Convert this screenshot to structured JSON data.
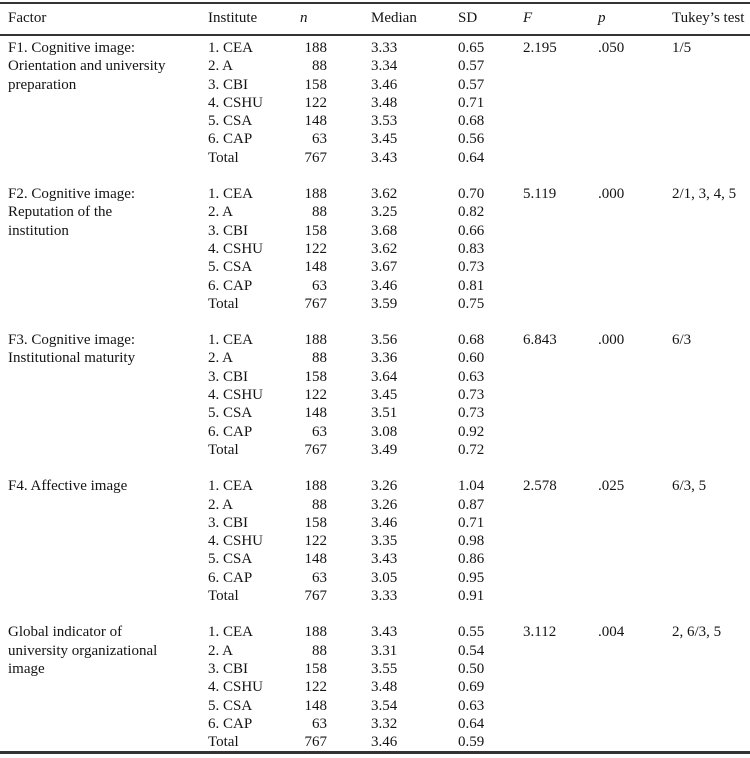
{
  "table": {
    "columns": [
      {
        "key": "factor",
        "label": "Factor"
      },
      {
        "key": "institute",
        "label": "Institute"
      },
      {
        "key": "n",
        "label": "n"
      },
      {
        "key": "median",
        "label": "Median"
      },
      {
        "key": "sd",
        "label": "SD"
      },
      {
        "key": "f",
        "label": "F"
      },
      {
        "key": "p",
        "label": "p"
      },
      {
        "key": "tukey",
        "label": "Tukey’s test"
      }
    ],
    "sections": [
      {
        "factor_lines": [
          "F1. Cognitive image:",
          "Orientation and university",
          "preparation"
        ],
        "rows": [
          {
            "institute": "1. CEA",
            "n": "188",
            "median": "3.33",
            "sd": "0.65",
            "f": "2.195",
            "p": ".050",
            "tukey": "1/5"
          },
          {
            "institute": "2. A",
            "n": "88",
            "median": "3.34",
            "sd": "0.57"
          },
          {
            "institute": "3. CBI",
            "n": "158",
            "median": "3.46",
            "sd": "0.57"
          },
          {
            "institute": "4. CSHU",
            "n": "122",
            "median": "3.48",
            "sd": "0.71"
          },
          {
            "institute": "5. CSA",
            "n": "148",
            "median": "3.53",
            "sd": "0.68"
          },
          {
            "institute": "6. CAP",
            "n": "63",
            "median": "3.45",
            "sd": "0.56"
          },
          {
            "institute": "Total",
            "n": "767",
            "median": "3.43",
            "sd": "0.64"
          }
        ]
      },
      {
        "factor_lines": [
          "F2. Cognitive image:",
          "Reputation of the",
          "institution"
        ],
        "rows": [
          {
            "institute": "1. CEA",
            "n": "188",
            "median": "3.62",
            "sd": "0.70",
            "f": "5.119",
            "p": ".000",
            "tukey": "2/1, 3, 4, 5"
          },
          {
            "institute": "2. A",
            "n": "88",
            "median": "3.25",
            "sd": "0.82"
          },
          {
            "institute": "3. CBI",
            "n": "158",
            "median": "3.68",
            "sd": "0.66"
          },
          {
            "institute": "4. CSHU",
            "n": "122",
            "median": "3.62",
            "sd": "0.83"
          },
          {
            "institute": "5. CSA",
            "n": "148",
            "median": "3.67",
            "sd": "0.73"
          },
          {
            "institute": "6. CAP",
            "n": "63",
            "median": "3.46",
            "sd": "0.81"
          },
          {
            "institute": "Total",
            "n": "767",
            "median": "3.59",
            "sd": "0.75"
          }
        ]
      },
      {
        "factor_lines": [
          "F3. Cognitive image:",
          "Institutional maturity"
        ],
        "rows": [
          {
            "institute": "1. CEA",
            "n": "188",
            "median": "3.56",
            "sd": "0.68",
            "f": "6.843",
            "p": ".000",
            "tukey": "6/3"
          },
          {
            "institute": "2. A",
            "n": "88",
            "median": "3.36",
            "sd": "0.60"
          },
          {
            "institute": "3. CBI",
            "n": "158",
            "median": "3.64",
            "sd": "0.63"
          },
          {
            "institute": "4. CSHU",
            "n": "122",
            "median": "3.45",
            "sd": "0.73"
          },
          {
            "institute": "5. CSA",
            "n": "148",
            "median": "3.51",
            "sd": "0.73"
          },
          {
            "institute": "6. CAP",
            "n": "63",
            "median": "3.08",
            "sd": "0.92"
          },
          {
            "institute": "Total",
            "n": "767",
            "median": "3.49",
            "sd": "0.72"
          }
        ]
      },
      {
        "factor_lines": [
          "F4. Affective image"
        ],
        "rows": [
          {
            "institute": "1. CEA",
            "n": "188",
            "median": "3.26",
            "sd": "1.04",
            "f": "2.578",
            "p": ".025",
            "tukey": "6/3, 5"
          },
          {
            "institute": "2. A",
            "n": "88",
            "median": "3.26",
            "sd": "0.87"
          },
          {
            "institute": "3. CBI",
            "n": "158",
            "median": "3.46",
            "sd": "0.71"
          },
          {
            "institute": "4. CSHU",
            "n": "122",
            "median": "3.35",
            "sd": "0.98"
          },
          {
            "institute": "5. CSA",
            "n": "148",
            "median": "3.43",
            "sd": "0.86"
          },
          {
            "institute": "6. CAP",
            "n": "63",
            "median": "3.05",
            "sd": "0.95"
          },
          {
            "institute": "Total",
            "n": "767",
            "median": "3.33",
            "sd": "0.91"
          }
        ]
      },
      {
        "factor_lines": [
          "Global indicator of",
          "university organizational",
          "image"
        ],
        "rows": [
          {
            "institute": "1. CEA",
            "n": "188",
            "median": "3.43",
            "sd": "0.55",
            "f": "3.112",
            "p": ".004",
            "tukey": "2, 6/3, 5"
          },
          {
            "institute": "2. A",
            "n": "88",
            "median": "3.31",
            "sd": "0.54"
          },
          {
            "institute": "3. CBI",
            "n": "158",
            "median": "3.55",
            "sd": "0.50"
          },
          {
            "institute": "4. CSHU",
            "n": "122",
            "median": "3.48",
            "sd": "0.69"
          },
          {
            "institute": "5. CSA",
            "n": "148",
            "median": "3.54",
            "sd": "0.63"
          },
          {
            "institute": "6. CAP",
            "n": "63",
            "median": "3.32",
            "sd": "0.64"
          },
          {
            "institute": "Total",
            "n": "767",
            "median": "3.46",
            "sd": "0.59"
          }
        ]
      }
    ]
  }
}
